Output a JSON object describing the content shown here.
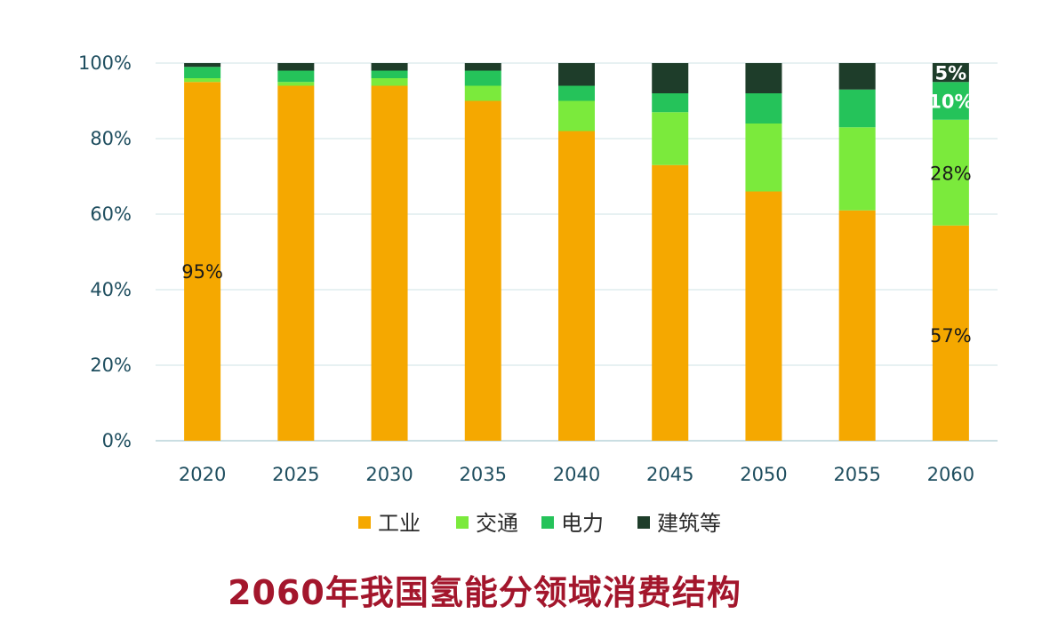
{
  "chart_data": {
    "type": "bar",
    "stacked": true,
    "categories": [
      "2020",
      "2025",
      "2030",
      "2035",
      "2040",
      "2045",
      "2050",
      "2055",
      "2060"
    ],
    "series": [
      {
        "name": "工业",
        "color": "#f5a800",
        "values": [
          95,
          94,
          94,
          90,
          82,
          73,
          66,
          61,
          57
        ]
      },
      {
        "name": "交通",
        "color": "#7bea3c",
        "values": [
          1,
          1,
          2,
          4,
          8,
          14,
          18,
          22,
          28
        ]
      },
      {
        "name": "电力",
        "color": "#25c35a",
        "values": [
          3,
          3,
          2,
          4,
          4,
          5,
          8,
          10,
          10
        ]
      },
      {
        "name": "建筑等",
        "color": "#1e3d2a",
        "values": [
          1,
          2,
          2,
          2,
          6,
          8,
          8,
          7,
          5
        ]
      }
    ],
    "ylim": [
      0,
      100
    ],
    "yticks": [
      "0%",
      "20%",
      "40%",
      "60%",
      "80%",
      "100%"
    ],
    "data_labels": [
      {
        "category": "2020",
        "series": "工业",
        "text": "95%"
      },
      {
        "category": "2060",
        "series": "工业",
        "text": "57%"
      },
      {
        "category": "2060",
        "series": "交通",
        "text": "28%"
      },
      {
        "category": "2060",
        "series": "电力",
        "text": "10%"
      },
      {
        "category": "2060",
        "series": "建筑等",
        "text": "5%"
      }
    ],
    "grid": true,
    "legend": "bottom",
    "title": "2060年我国氢能分领域消费结构"
  }
}
